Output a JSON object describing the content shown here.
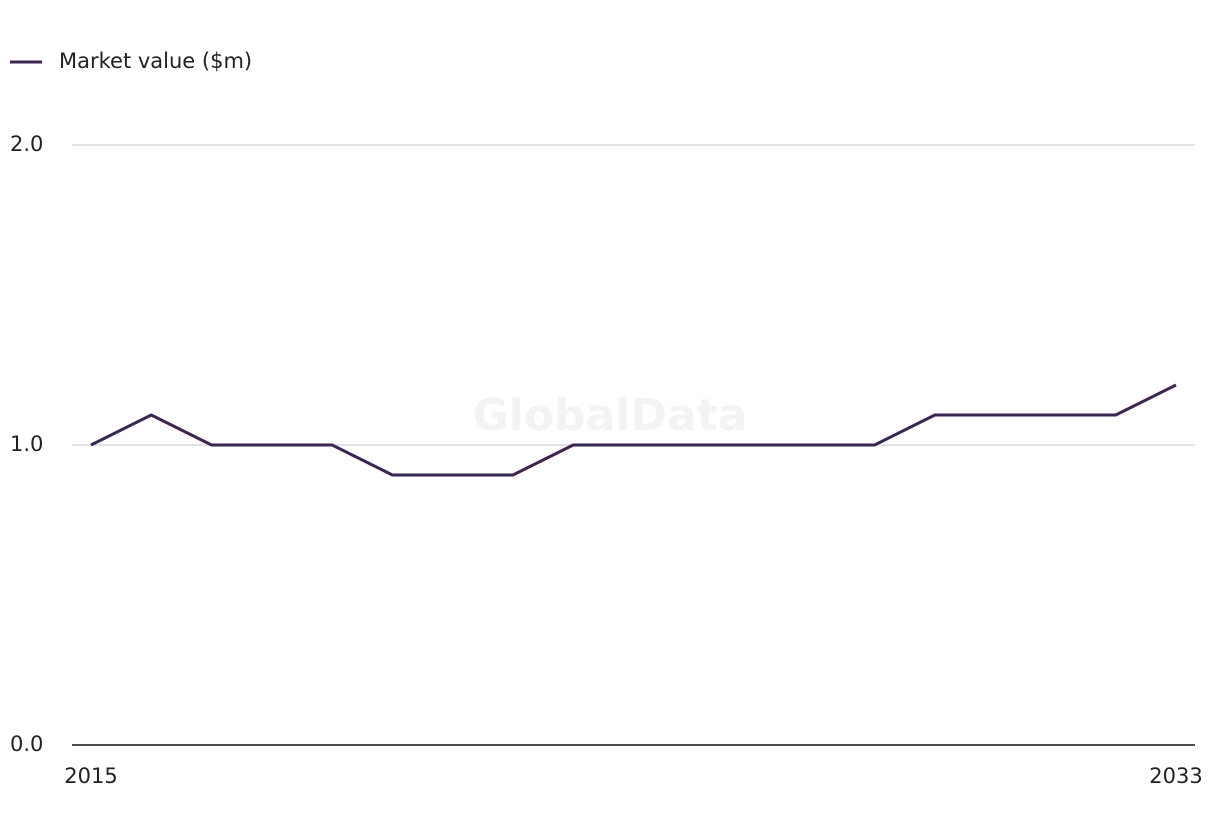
{
  "chart_data": {
    "type": "line",
    "watermark": "GlobalData",
    "x": [
      2015,
      2016,
      2017,
      2018,
      2019,
      2020,
      2021,
      2022,
      2023,
      2024,
      2025,
      2026,
      2027,
      2028,
      2029,
      2030,
      2031,
      2032,
      2033
    ],
    "series": [
      {
        "name": "Market value ($m)",
        "color": "#3b2556",
        "values": [
          1.0,
          1.1,
          1.0,
          1.0,
          1.0,
          0.9,
          0.9,
          0.9,
          1.0,
          1.0,
          1.0,
          1.0,
          1.0,
          1.0,
          1.1,
          1.1,
          1.1,
          1.1,
          1.2
        ]
      }
    ],
    "xlim": [
      2015,
      2033
    ],
    "xticks": [
      2015,
      2033
    ],
    "ylim": [
      0,
      2
    ],
    "yticks": [
      {
        "value": 0,
        "label": "0.0"
      },
      {
        "value": 1,
        "label": "1.0"
      },
      {
        "value": 2,
        "label": "2.0"
      }
    ],
    "grid": true,
    "legend": "top-left"
  }
}
